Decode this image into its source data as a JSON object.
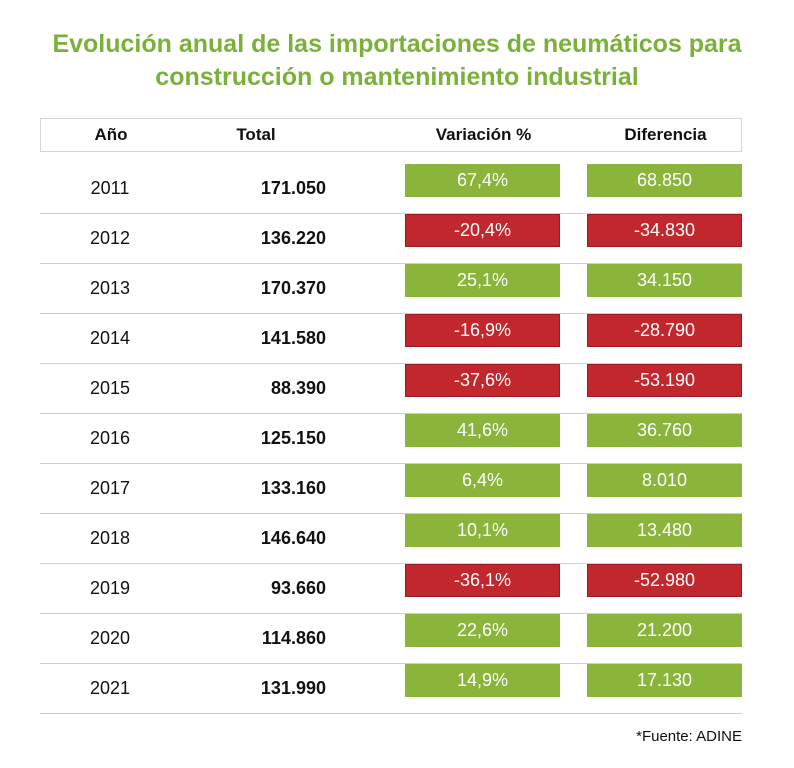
{
  "title_lines": [
    "Evolución anual de las importaciones de neumáticos para",
    "construcción o mantenimiento industrial"
  ],
  "headers": {
    "year": "Año",
    "total": "Total",
    "variation": "Variación %",
    "difference": "Diferencia"
  },
  "colors": {
    "title": "#7bb03a",
    "positive": "#8ab43a",
    "negative": "#c1272d"
  },
  "source": "*Fuente: ADINE",
  "chart_data": {
    "type": "table",
    "columns": [
      "Año",
      "Total",
      "Variación %",
      "Diferencia"
    ],
    "rows": [
      {
        "year": "2011",
        "total": "171.050",
        "variation": "67,4%",
        "difference": "68.850",
        "sign": "positive"
      },
      {
        "year": "2012",
        "total": "136.220",
        "variation": "-20,4%",
        "difference": "-34.830",
        "sign": "negative"
      },
      {
        "year": "2013",
        "total": "170.370",
        "variation": "25,1%",
        "difference": "34.150",
        "sign": "positive"
      },
      {
        "year": "2014",
        "total": "141.580",
        "variation": "-16,9%",
        "difference": "-28.790",
        "sign": "negative"
      },
      {
        "year": "2015",
        "total": "88.390",
        "variation": "-37,6%",
        "difference": "-53.190",
        "sign": "negative"
      },
      {
        "year": "2016",
        "total": "125.150",
        "variation": "41,6%",
        "difference": "36.760",
        "sign": "positive"
      },
      {
        "year": "2017",
        "total": "133.160",
        "variation": "6,4%",
        "difference": "8.010",
        "sign": "positive"
      },
      {
        "year": "2018",
        "total": "146.640",
        "variation": "10,1%",
        "difference": "13.480",
        "sign": "positive"
      },
      {
        "year": "2019",
        "total": "93.660",
        "variation": "-36,1%",
        "difference": "-52.980",
        "sign": "negative"
      },
      {
        "year": "2020",
        "total": "114.860",
        "variation": "22,6%",
        "difference": "21.200",
        "sign": "positive"
      },
      {
        "year": "2021",
        "total": "131.990",
        "variation": "14,9%",
        "difference": "17.130",
        "sign": "positive"
      }
    ]
  }
}
